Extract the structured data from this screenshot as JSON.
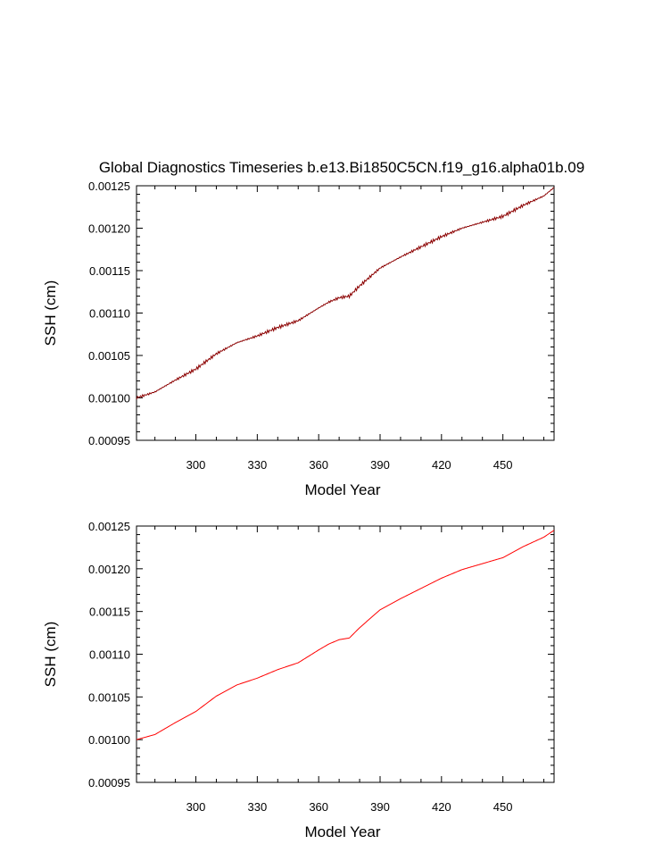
{
  "figure_title": "Global Diagnostics Timeseries b.e13.Bi1850C5CN.f19_g16.alpha01b.09",
  "chart_data": [
    {
      "type": "line",
      "title": "Global Diagnostics Timeseries b.e13.Bi1850C5CN.f19_g16.alpha01b.09",
      "xlabel": "Model Year",
      "ylabel": "SSH (cm)",
      "xlim": [
        271,
        475
      ],
      "ylim": [
        0.00095,
        0.00125
      ],
      "xticks": [
        "300",
        "330",
        "360",
        "390",
        "420",
        "450"
      ],
      "yticks": [
        "0.00095",
        "0.00100",
        "0.00105",
        "0.00110",
        "0.00115",
        "0.00120",
        "0.00125"
      ],
      "series": [
        {
          "color": "#8b0000",
          "noisy": true,
          "x": [
            271,
            280,
            290,
            300,
            310,
            320,
            330,
            340,
            350,
            360,
            365,
            370,
            375,
            380,
            390,
            400,
            410,
            420,
            430,
            440,
            450,
            460,
            470,
            475
          ],
          "y": [
            0.001,
            0.001007,
            0.001021,
            0.001034,
            0.001052,
            0.001065,
            0.001073,
            0.001083,
            0.001091,
            0.001106,
            0.001113,
            0.001118,
            0.00112,
            0.001132,
            0.001153,
            0.001166,
            0.001178,
            0.00119,
            0.0012,
            0.001207,
            0.001214,
            0.001227,
            0.001238,
            0.001248
          ]
        }
      ]
    },
    {
      "type": "line",
      "title": "",
      "xlabel": "Model Year",
      "ylabel": "SSH (cm)",
      "xlim": [
        271,
        475
      ],
      "ylim": [
        0.00095,
        0.00125
      ],
      "xticks": [
        "300",
        "330",
        "360",
        "390",
        "420",
        "450"
      ],
      "yticks": [
        "0.00095",
        "0.00100",
        "0.00105",
        "0.00110",
        "0.00115",
        "0.00120",
        "0.00125"
      ],
      "series": [
        {
          "color": "#ff0000",
          "noisy": false,
          "x": [
            271,
            280,
            290,
            300,
            310,
            320,
            330,
            340,
            350,
            360,
            365,
            370,
            375,
            380,
            390,
            400,
            410,
            420,
            430,
            440,
            450,
            460,
            470,
            475
          ],
          "y": [
            0.001,
            0.001006,
            0.00102,
            0.001033,
            0.001051,
            0.001064,
            0.001072,
            0.001082,
            0.00109,
            0.001105,
            0.001112,
            0.001117,
            0.001119,
            0.001131,
            0.001152,
            0.001165,
            0.001177,
            0.001189,
            0.001199,
            0.001206,
            0.001213,
            0.001226,
            0.001237,
            0.001245
          ]
        }
      ]
    }
  ]
}
